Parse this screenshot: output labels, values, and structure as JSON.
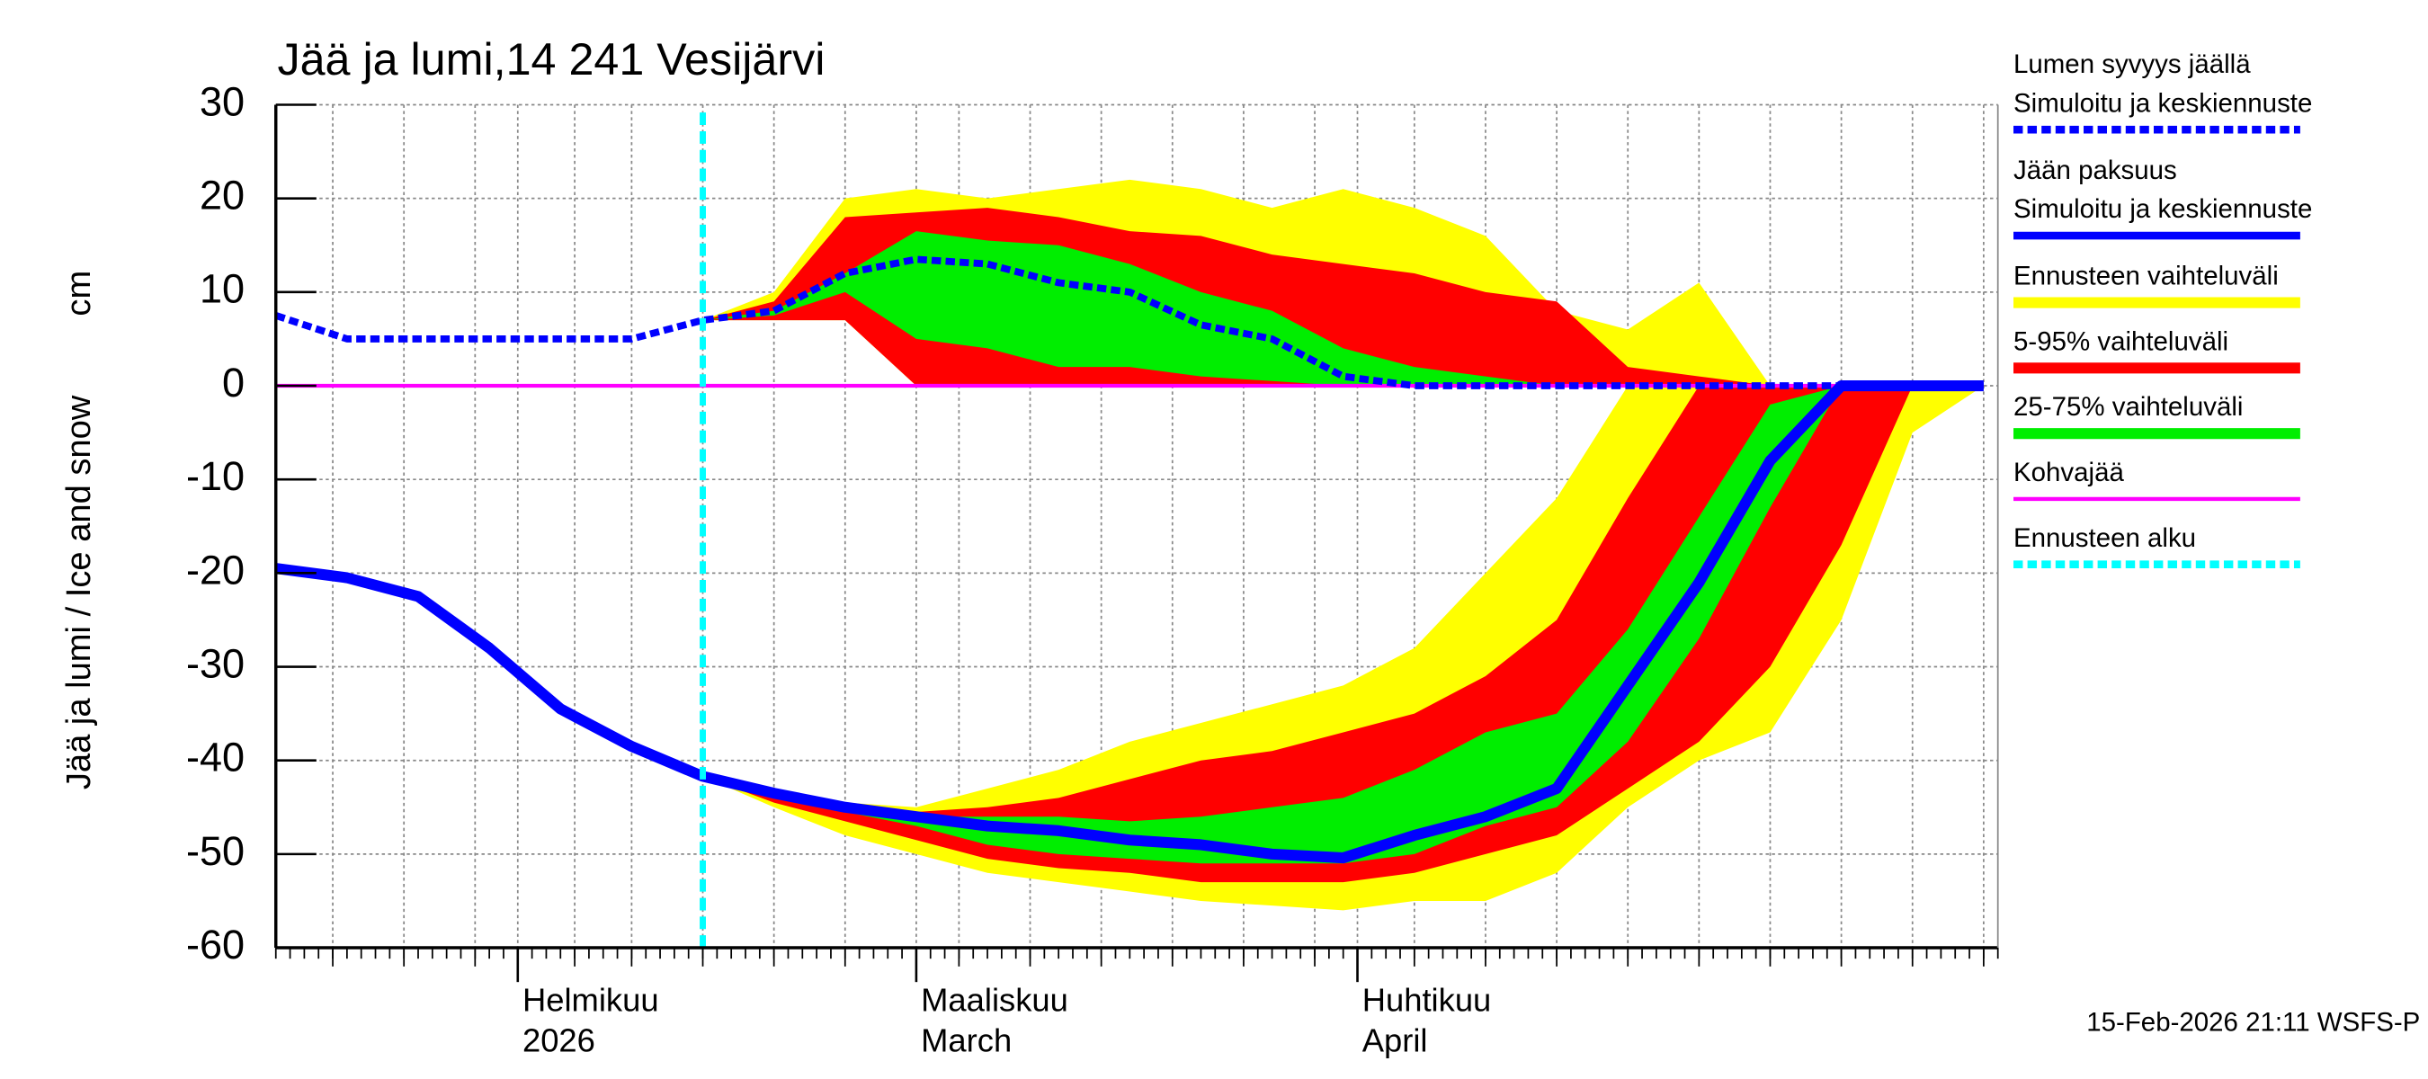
{
  "chart_data": {
    "type": "band-line",
    "title": "Jää ja lumi,14 241 Vesijärvi",
    "ylabel": "Jää ja lumi / Ice and snow",
    "yunit": "cm",
    "footer": "15-Feb-2026 21:11 WSFS-P",
    "xlim": [
      0,
      121
    ],
    "xticks": [
      {
        "value": 17,
        "label": [
          "Helmikuu",
          "2026"
        ]
      },
      {
        "value": 45,
        "label": [
          "Maaliskuu",
          "March"
        ]
      },
      {
        "value": 76,
        "label": [
          "Huhtikuu",
          "April"
        ]
      }
    ],
    "xgrid": [
      4,
      9,
      14,
      21,
      25,
      30,
      35,
      40,
      48,
      53,
      58,
      63,
      68,
      73,
      80,
      85,
      90,
      95,
      100,
      105,
      110,
      115,
      120
    ],
    "ylim": [
      -60,
      30
    ],
    "yticks": [
      30,
      20,
      10,
      0,
      -10,
      -20,
      -30,
      -40,
      -50,
      -60
    ],
    "grid": true,
    "x": [
      0,
      5,
      10,
      15,
      20,
      25,
      30,
      35,
      40,
      45,
      50,
      55,
      60,
      65,
      70,
      75,
      80,
      85,
      90,
      95,
      100,
      105,
      110,
      115,
      120
    ],
    "series": [
      {
        "type": "line",
        "name": [
          "Lumen syvyys jäällä",
          "Simuloitu ja keskiennuste"
        ],
        "color": "#0000ff",
        "style": "dashed",
        "values": [
          7.5,
          5,
          5,
          5,
          5,
          5,
          7,
          8,
          12,
          13.5,
          13,
          11,
          10,
          6.5,
          5,
          1,
          0,
          0,
          0,
          0,
          0,
          0,
          0,
          0,
          0
        ]
      },
      {
        "type": "line",
        "name": [
          "Jään paksuus",
          "Simuloitu ja keskiennuste"
        ],
        "color": "#0000ff",
        "style": "solid",
        "values": [
          -19.5,
          -20.5,
          -22.5,
          -28,
          -34.5,
          -38.5,
          -41.7,
          -43.5,
          -45,
          -46,
          -47,
          -47.5,
          -48.5,
          -49,
          -50,
          -50.4,
          -48,
          -46,
          -43,
          -32,
          -21,
          -8,
          0,
          0,
          0
        ]
      },
      {
        "type": "band",
        "name": "Ennusteen vaihteluväli",
        "color": "#ffff00",
        "snow_upper": [
          null,
          null,
          null,
          null,
          null,
          null,
          7,
          10,
          20,
          21,
          20,
          21,
          22,
          21,
          19,
          21,
          19,
          16,
          8,
          6,
          11,
          0,
          0,
          0,
          0
        ],
        "snow_lower": [
          null,
          null,
          null,
          null,
          null,
          null,
          7,
          7,
          7,
          0,
          0,
          0,
          0,
          0,
          0,
          0,
          0,
          0,
          0,
          0,
          0,
          0,
          0,
          0,
          0
        ],
        "ice_upper": [
          null,
          null,
          null,
          null,
          null,
          null,
          -41.7,
          -43.5,
          -44.5,
          -45,
          -43,
          -41,
          -38,
          -36,
          -34,
          -32,
          -28,
          -20,
          -12,
          0,
          0,
          0,
          0,
          0,
          0
        ],
        "ice_lower": [
          null,
          null,
          null,
          null,
          null,
          null,
          -41.7,
          -45,
          -48,
          -50,
          -52,
          -53,
          -54,
          -55,
          -55.5,
          -56,
          -55,
          -55,
          -52,
          -45,
          -40,
          -37,
          -25,
          -5,
          0
        ]
      },
      {
        "type": "band",
        "name": "5-95% vaihteluväli",
        "color": "#ff0000",
        "snow_upper": [
          null,
          null,
          null,
          null,
          null,
          null,
          7,
          9,
          18,
          18.5,
          19,
          18,
          16.5,
          16,
          14,
          13,
          12,
          10,
          9,
          2,
          1,
          0,
          0,
          0,
          0
        ],
        "snow_lower": [
          null,
          null,
          null,
          null,
          null,
          null,
          7,
          7,
          7,
          0,
          0,
          0,
          0,
          0,
          0,
          0,
          0,
          0,
          0,
          0,
          0,
          0,
          0,
          0,
          0
        ],
        "ice_upper": [
          null,
          null,
          null,
          null,
          null,
          null,
          -41.7,
          -43.5,
          -45,
          -45.5,
          -45,
          -44,
          -42,
          -40,
          -39,
          -37,
          -35,
          -31,
          -25,
          -12,
          0,
          0,
          0,
          0,
          0
        ],
        "ice_lower": [
          null,
          null,
          null,
          null,
          null,
          null,
          -41.7,
          -44.5,
          -46.5,
          -48.5,
          -50.5,
          -51.5,
          -52,
          -53,
          -53,
          -53,
          -52,
          -50,
          -48,
          -43,
          -38,
          -30,
          -17,
          0,
          0
        ]
      },
      {
        "type": "band",
        "name": "25-75% vaihteluväli",
        "color": "#00ee00",
        "snow_upper": [
          null,
          null,
          null,
          null,
          null,
          null,
          7,
          8,
          12,
          16.5,
          15.5,
          15,
          13,
          10,
          8,
          4,
          2,
          1,
          0,
          0,
          0,
          0,
          0,
          0,
          0
        ],
        "snow_lower": [
          null,
          null,
          null,
          null,
          null,
          null,
          7,
          7.5,
          10,
          5,
          4,
          2,
          2,
          1,
          0.5,
          0,
          0,
          0,
          0,
          0,
          0,
          0,
          0,
          0,
          0
        ],
        "ice_upper": [
          null,
          null,
          null,
          null,
          null,
          null,
          -41.7,
          -43.5,
          -45,
          -46,
          -46,
          -46,
          -46.5,
          -46,
          -45,
          -44,
          -41,
          -37,
          -35,
          -26,
          -14,
          -2,
          0,
          0,
          0
        ],
        "ice_lower": [
          null,
          null,
          null,
          null,
          null,
          null,
          -41.7,
          -44,
          -45.5,
          -47,
          -49,
          -50,
          -50.5,
          -51,
          -51,
          -51,
          -50,
          -47,
          -45,
          -38,
          -27,
          -13,
          0,
          0,
          0
        ]
      },
      {
        "type": "line",
        "name": "Kohvajää",
        "color": "#ff00ff",
        "style": "solid",
        "values": [
          0,
          0,
          0,
          0,
          0,
          0,
          0,
          0,
          0,
          0,
          0,
          0,
          0,
          0,
          0,
          0,
          0,
          0,
          0,
          0,
          0,
          0,
          0,
          0,
          0
        ]
      },
      {
        "type": "vline",
        "name": "Ennusteen alku",
        "color": "#00ffff",
        "style": "dashed",
        "x": 30
      }
    ]
  }
}
